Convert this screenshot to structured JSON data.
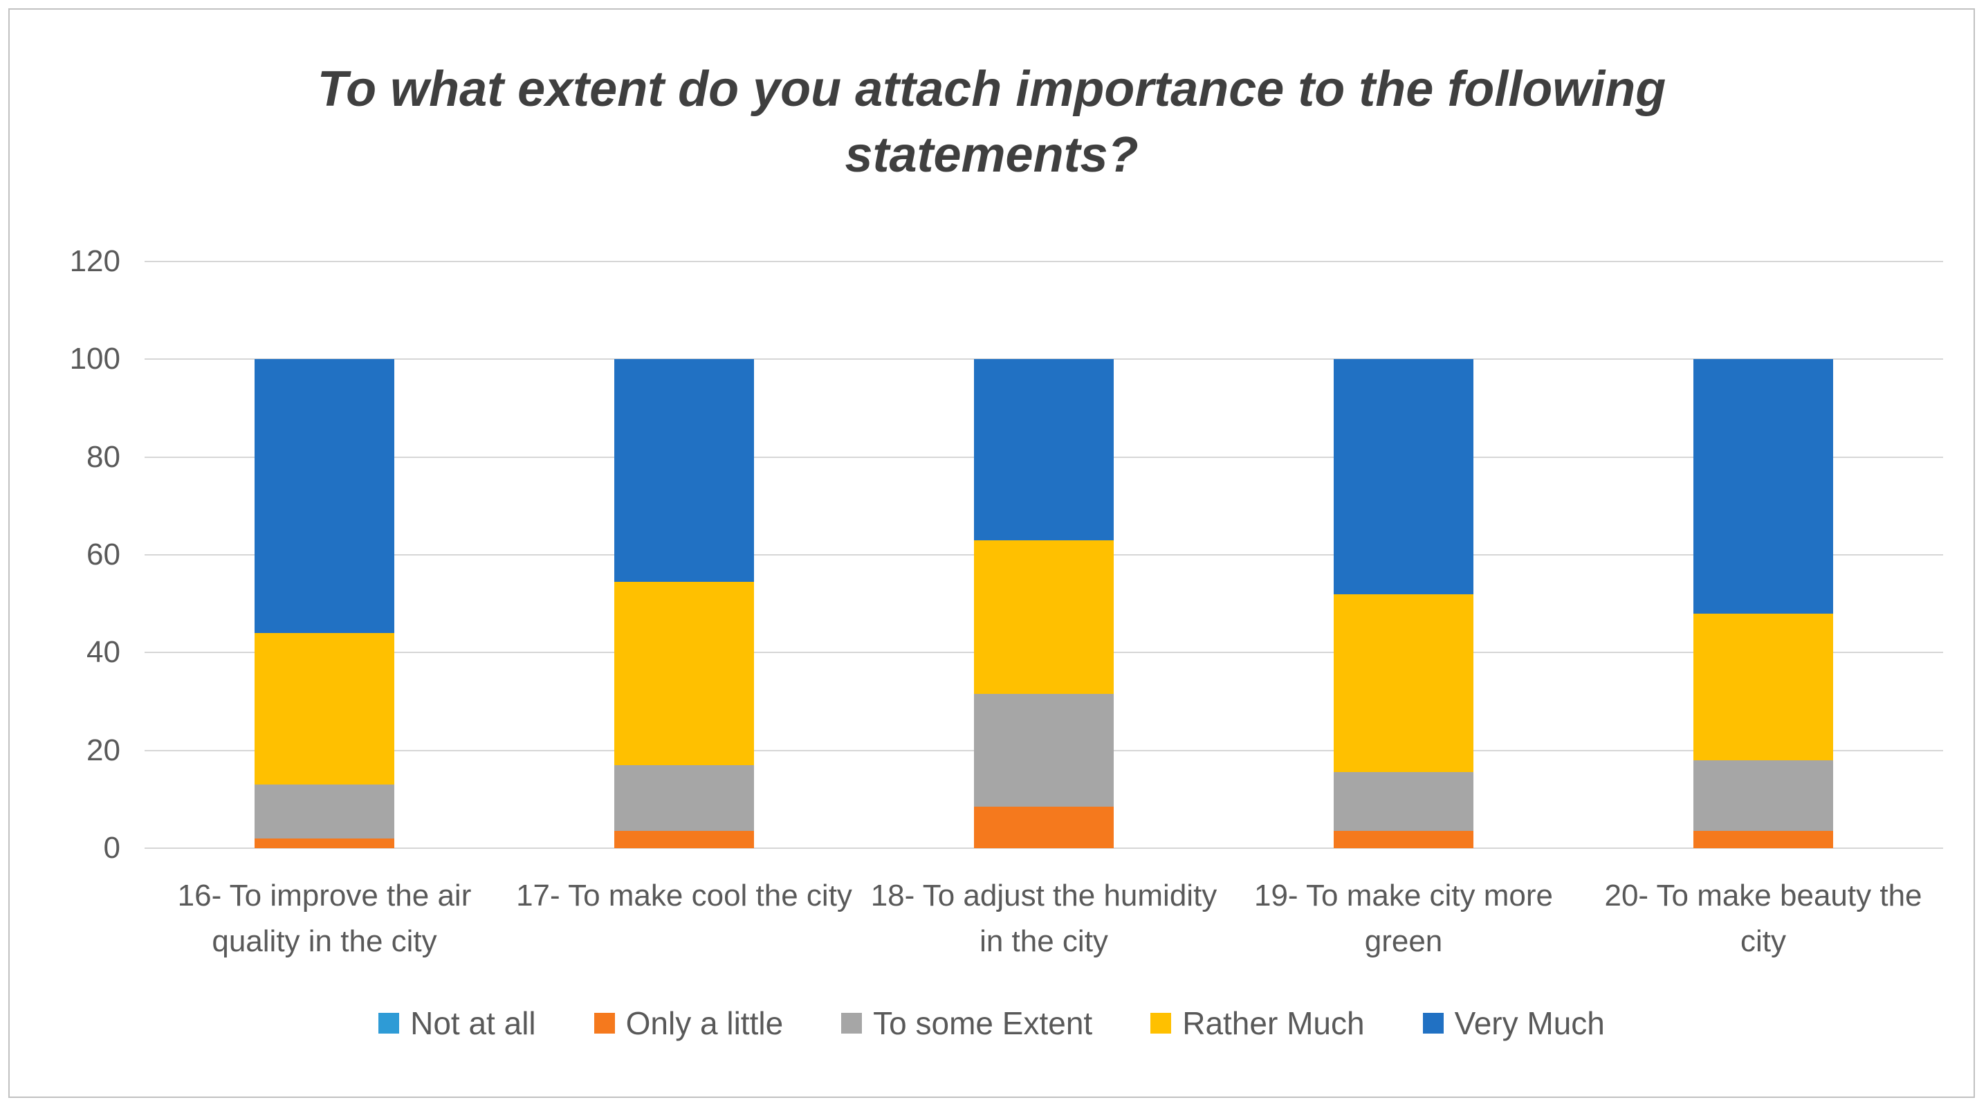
{
  "colors": {
    "title_text": "#3f3f3f",
    "axis_text": "#595959",
    "gridline": "#d6d6d6",
    "frame_border": "#c1c1c1",
    "background": "#ffffff"
  },
  "chart_data": {
    "type": "bar",
    "stacked": true,
    "title": "To what extent do you attach importance to the following statements?",
    "categories": [
      "16- To improve the air quality in the city",
      "17- To make cool the city",
      "18- To adjust the humidity in the city",
      "19- To make city more green",
      "20- To make beauty the city"
    ],
    "series": [
      {
        "name": "Not at all",
        "color": "#2e9bd6",
        "values": [
          0,
          0,
          0,
          0,
          0
        ]
      },
      {
        "name": "Only a little",
        "color": "#f5791d",
        "values": [
          2,
          3.5,
          8.5,
          3.5,
          3.5
        ]
      },
      {
        "name": "To some Extent",
        "color": "#a6a6a6",
        "values": [
          11,
          13.5,
          23,
          12,
          14.5
        ]
      },
      {
        "name": "Rather Much",
        "color": "#ffc000",
        "values": [
          31,
          37.5,
          31.5,
          36.5,
          30
        ]
      },
      {
        "name": "Very Much",
        "color": "#2171c3",
        "values": [
          56,
          45.5,
          37,
          48,
          52
        ]
      }
    ],
    "xlabel": "",
    "ylabel": "",
    "ylim": [
      0,
      120
    ],
    "yticks": [
      0,
      20,
      40,
      60,
      80,
      100,
      120
    ],
    "grid": true,
    "legend_position": "bottom"
  }
}
